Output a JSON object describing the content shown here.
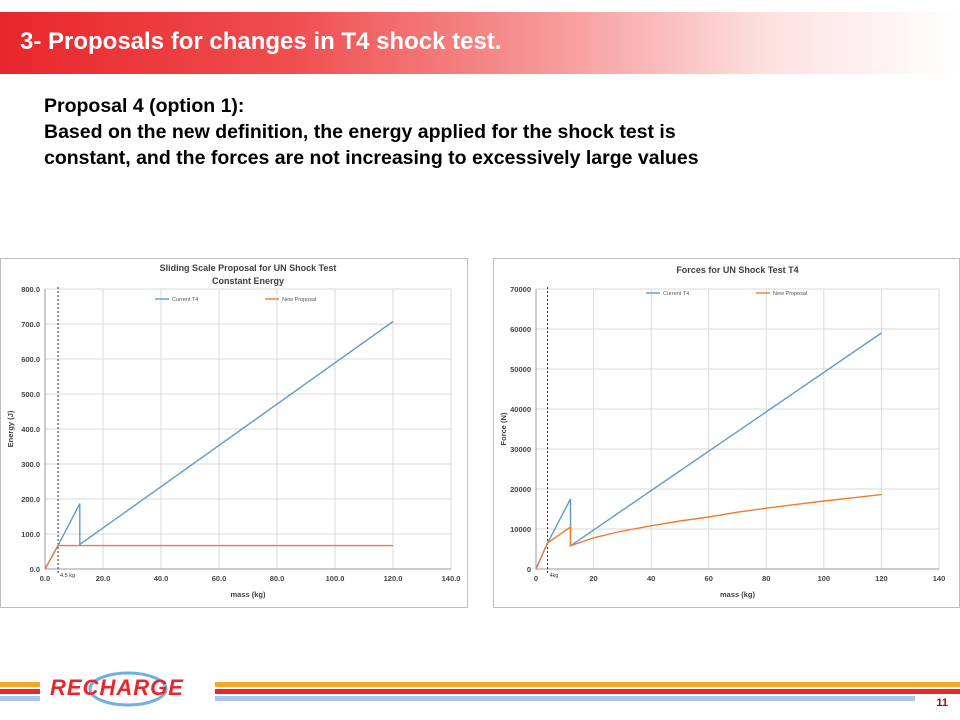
{
  "slide": {
    "title": "3- Proposals for changes in T4 shock test.",
    "body_lines": [
      "Proposal 4 (option 1):",
      "Based on the new definition, the energy applied for the shock test is",
      "constant, and the forces are not increasing to excessively large values"
    ],
    "page_number": "11",
    "logo_text": "RECHARGE"
  },
  "colors": {
    "current": "#5b9bd5",
    "proposal": "#ed7d31",
    "title_red": "#e8262b"
  },
  "chart_data": [
    {
      "type": "line",
      "title": "Sliding Scale Proposal for UN Shock Test",
      "subtitle": "Constant Energy",
      "xlabel": "mass (kg)",
      "ylabel": "Energy (J)",
      "xlim": [
        0,
        140
      ],
      "ylim": [
        0,
        800
      ],
      "xticks": [
        "0.0",
        "20.0",
        "40.0",
        "60.0",
        "80.0",
        "100.0",
        "120.0",
        "140.0"
      ],
      "yticks": [
        "0.0",
        "100.0",
        "200.0",
        "300.0",
        "400.0",
        "500.0",
        "600.0",
        "700.0",
        "800.0"
      ],
      "marker_label": "4.5 kg",
      "marker_x": 4.5,
      "grid": true,
      "legend_position": "top",
      "series": [
        {
          "name": "Current T4",
          "points": [
            [
              0,
              0
            ],
            [
              4.5,
              67
            ],
            [
              12,
              187
            ],
            [
              12,
              70
            ],
            [
              120,
              707
            ]
          ]
        },
        {
          "name": "New Proposal",
          "points": [
            [
              0,
              0
            ],
            [
              4.5,
              67
            ],
            [
              12,
              67
            ],
            [
              120,
              67
            ]
          ]
        }
      ]
    },
    {
      "type": "line",
      "title": "Forces for UN Shock Test T4",
      "subtitle": "",
      "xlabel": "mass (kg)",
      "ylabel": "Force (N)",
      "xlim": [
        0,
        140
      ],
      "ylim": [
        0,
        70000
      ],
      "xticks": [
        "0",
        "20",
        "40",
        "60",
        "80",
        "100",
        "120",
        "140"
      ],
      "yticks": [
        "0",
        "10000",
        "20000",
        "30000",
        "40000",
        "50000",
        "60000",
        "70000"
      ],
      "marker_label": "4kg",
      "marker_x": 4,
      "grid": true,
      "legend_position": "top",
      "series": [
        {
          "name": "Current T4",
          "points": [
            [
              0,
              0
            ],
            [
              4,
              6500
            ],
            [
              12,
              17500
            ],
            [
              12,
              5800
            ],
            [
              120,
              59000
            ]
          ]
        },
        {
          "name": "New Proposal",
          "points": [
            [
              0,
              0
            ],
            [
              4,
              6500
            ],
            [
              12,
              10500
            ],
            [
              12,
              5800
            ],
            [
              20,
              7800
            ],
            [
              30,
              9500
            ],
            [
              40,
              10800
            ],
            [
              50,
              12000
            ],
            [
              60,
              13000
            ],
            [
              70,
              14200
            ],
            [
              80,
              15200
            ],
            [
              90,
              16100
            ],
            [
              100,
              17000
            ],
            [
              110,
              17800
            ],
            [
              120,
              18600
            ]
          ]
        }
      ]
    }
  ]
}
